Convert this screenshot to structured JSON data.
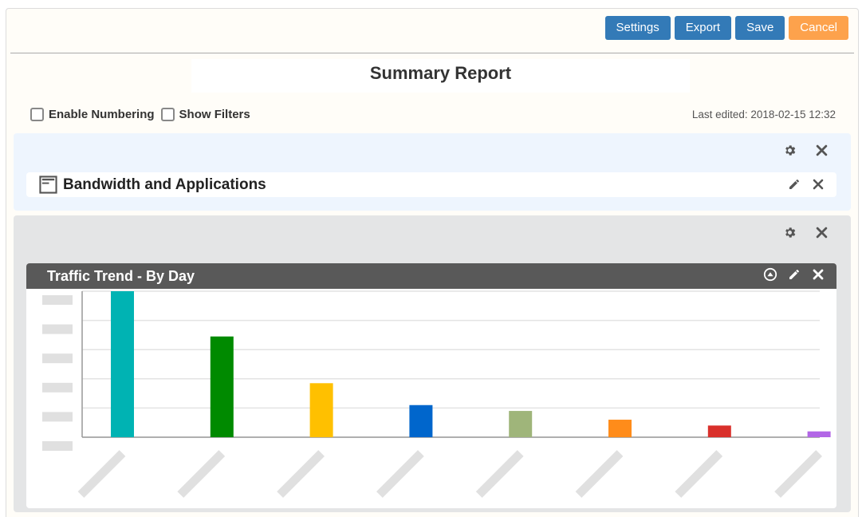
{
  "toolbar": {
    "settings_label": "Settings",
    "export_label": "Export",
    "save_label": "Save",
    "cancel_label": "Cancel"
  },
  "report": {
    "title": "Summary Report",
    "last_edited": "Last edited: 2018-02-15 12:32"
  },
  "options": {
    "enable_numbering": {
      "label": "Enable Numbering",
      "checked": false
    },
    "show_filters": {
      "label": "Show Filters",
      "checked": false
    }
  },
  "sections": [
    {
      "item_title": "Bandwidth and Applications"
    },
    {
      "widget_title": "Traffic Trend - By Day"
    }
  ],
  "colors": {
    "primary_button": "#337ab7",
    "cancel_button": "#fda24c",
    "widget_header": "#595959"
  },
  "chart_data": {
    "type": "bar",
    "title": "",
    "xlabel": "",
    "ylabel": "",
    "ylim": [
      0,
      1
    ],
    "grid": true,
    "categories_obscured": true,
    "series": [
      {
        "values": [
          1.0,
          0.69,
          0.37,
          0.22,
          0.18,
          0.12,
          0.08,
          0.04
        ],
        "colors": [
          "#00b3b3",
          "#008a00",
          "#ffc000",
          "#0066cc",
          "#9fb57a",
          "#ff8c1a",
          "#d9302b",
          "#b266e6"
        ]
      }
    ]
  }
}
